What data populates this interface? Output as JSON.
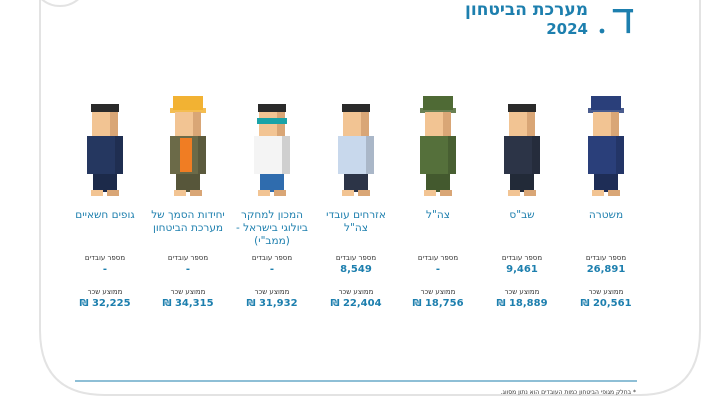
{
  "header": {
    "letter": "ד",
    "title": "מערכת הביטחון",
    "year": "2024"
  },
  "organizations": [
    {
      "name": "משטרה",
      "employees_label": "מספר עובדים",
      "employees": "26,891",
      "salary_label": "ממוצע שכר",
      "salary": "₪ 20,561"
    },
    {
      "name": "שב\"ס",
      "employees_label": "מספר עובדים",
      "employees": "9,461",
      "salary_label": "ממוצע שכר",
      "salary": "₪ 18,889"
    },
    {
      "name": "צה\"ל",
      "employees_label": "מספר עובדים",
      "employees": "-",
      "salary_label": "ממוצע שכר",
      "salary": "₪ 18,756"
    },
    {
      "name": "אזרחים עובדי צה\"ל",
      "employees_label": "מספר עובדים",
      "employees": "8,549",
      "salary_label": "ממוצע שכר",
      "salary": "₪ 22,404"
    },
    {
      "name": "המכון למחקר ביולוגי בישראל - (ממב\"י)",
      "employees_label": "מספר עובדים",
      "employees": "-",
      "salary_label": "ממוצע שכר",
      "salary": "₪ 31,932"
    },
    {
      "name": "יחידות הסמך של מערכת הביטחון",
      "employees_label": "מספר עובדים",
      "employees": "-",
      "salary_label": "ממוצע שכר",
      "salary": "₪ 34,315"
    },
    {
      "name": "גופים חשאיים",
      "employees_label": "מספר עובדים",
      "employees": "-",
      "salary_label": "ממוצע שכר",
      "salary": "₪ 32,225"
    }
  ],
  "footnote": "* בחלק מגופי הביטחון כמות העובדים הוא נתון מסווג."
}
